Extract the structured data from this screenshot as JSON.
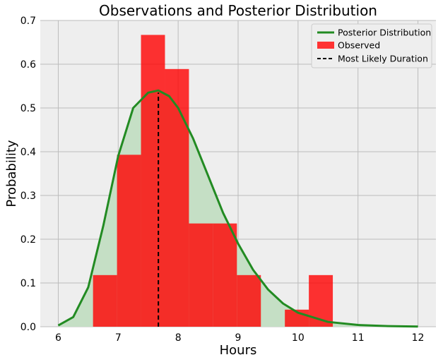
{
  "chart_data": {
    "type": "bar",
    "title": "Observations and Posterior Distribution",
    "xlabel": "Hours",
    "ylabel": "Probability",
    "xlim": [
      5.7,
      12.3
    ],
    "ylim": [
      0,
      0.7
    ],
    "xticks": [
      6,
      7,
      8,
      9,
      10,
      11,
      12
    ],
    "yticks": [
      0.0,
      0.1,
      0.2,
      0.3,
      0.4,
      0.5,
      0.6,
      0.7
    ],
    "grid": true,
    "legend_position": "top-right",
    "histogram": {
      "name": "Observed",
      "color": "#ff0000",
      "bins": [
        {
          "x0": 6.58,
          "x1": 6.98,
          "value": 0.118
        },
        {
          "x0": 6.98,
          "x1": 7.38,
          "value": 0.393
        },
        {
          "x0": 7.38,
          "x1": 7.78,
          "value": 0.667
        },
        {
          "x0": 7.78,
          "x1": 8.18,
          "value": 0.589
        },
        {
          "x0": 8.18,
          "x1": 8.58,
          "value": 0.236
        },
        {
          "x0": 8.58,
          "x1": 8.98,
          "value": 0.236
        },
        {
          "x0": 8.98,
          "x1": 9.38,
          "value": 0.118
        },
        {
          "x0": 9.38,
          "x1": 9.78,
          "value": 0.0
        },
        {
          "x0": 9.78,
          "x1": 10.18,
          "value": 0.039
        },
        {
          "x0": 10.18,
          "x1": 10.58,
          "value": 0.118
        }
      ]
    },
    "curve": {
      "name": "Posterior Distribution",
      "color": "#228b22",
      "fill_color": "#c5dfc5",
      "x": [
        6.0,
        6.25,
        6.5,
        6.75,
        7.0,
        7.25,
        7.5,
        7.67,
        7.85,
        8.0,
        8.25,
        8.5,
        8.75,
        9.0,
        9.25,
        9.5,
        9.75,
        10.0,
        10.5,
        11.0,
        11.5,
        12.0
      ],
      "y": [
        0.003,
        0.022,
        0.09,
        0.23,
        0.39,
        0.5,
        0.535,
        0.54,
        0.527,
        0.5,
        0.43,
        0.345,
        0.26,
        0.19,
        0.13,
        0.085,
        0.053,
        0.032,
        0.011,
        0.004,
        0.0015,
        0.0005
      ]
    },
    "reference_line": {
      "name": "Most Likely Duration",
      "x": 7.67,
      "y_top": 0.535,
      "color": "#000000"
    },
    "legend": [
      {
        "label": "Posterior Distribution",
        "kind": "line",
        "color": "#228b22"
      },
      {
        "label": "Observed",
        "kind": "patch",
        "color": "#ff3333"
      },
      {
        "label": "Most Likely Duration",
        "kind": "dashed",
        "color": "#000000"
      }
    ]
  }
}
